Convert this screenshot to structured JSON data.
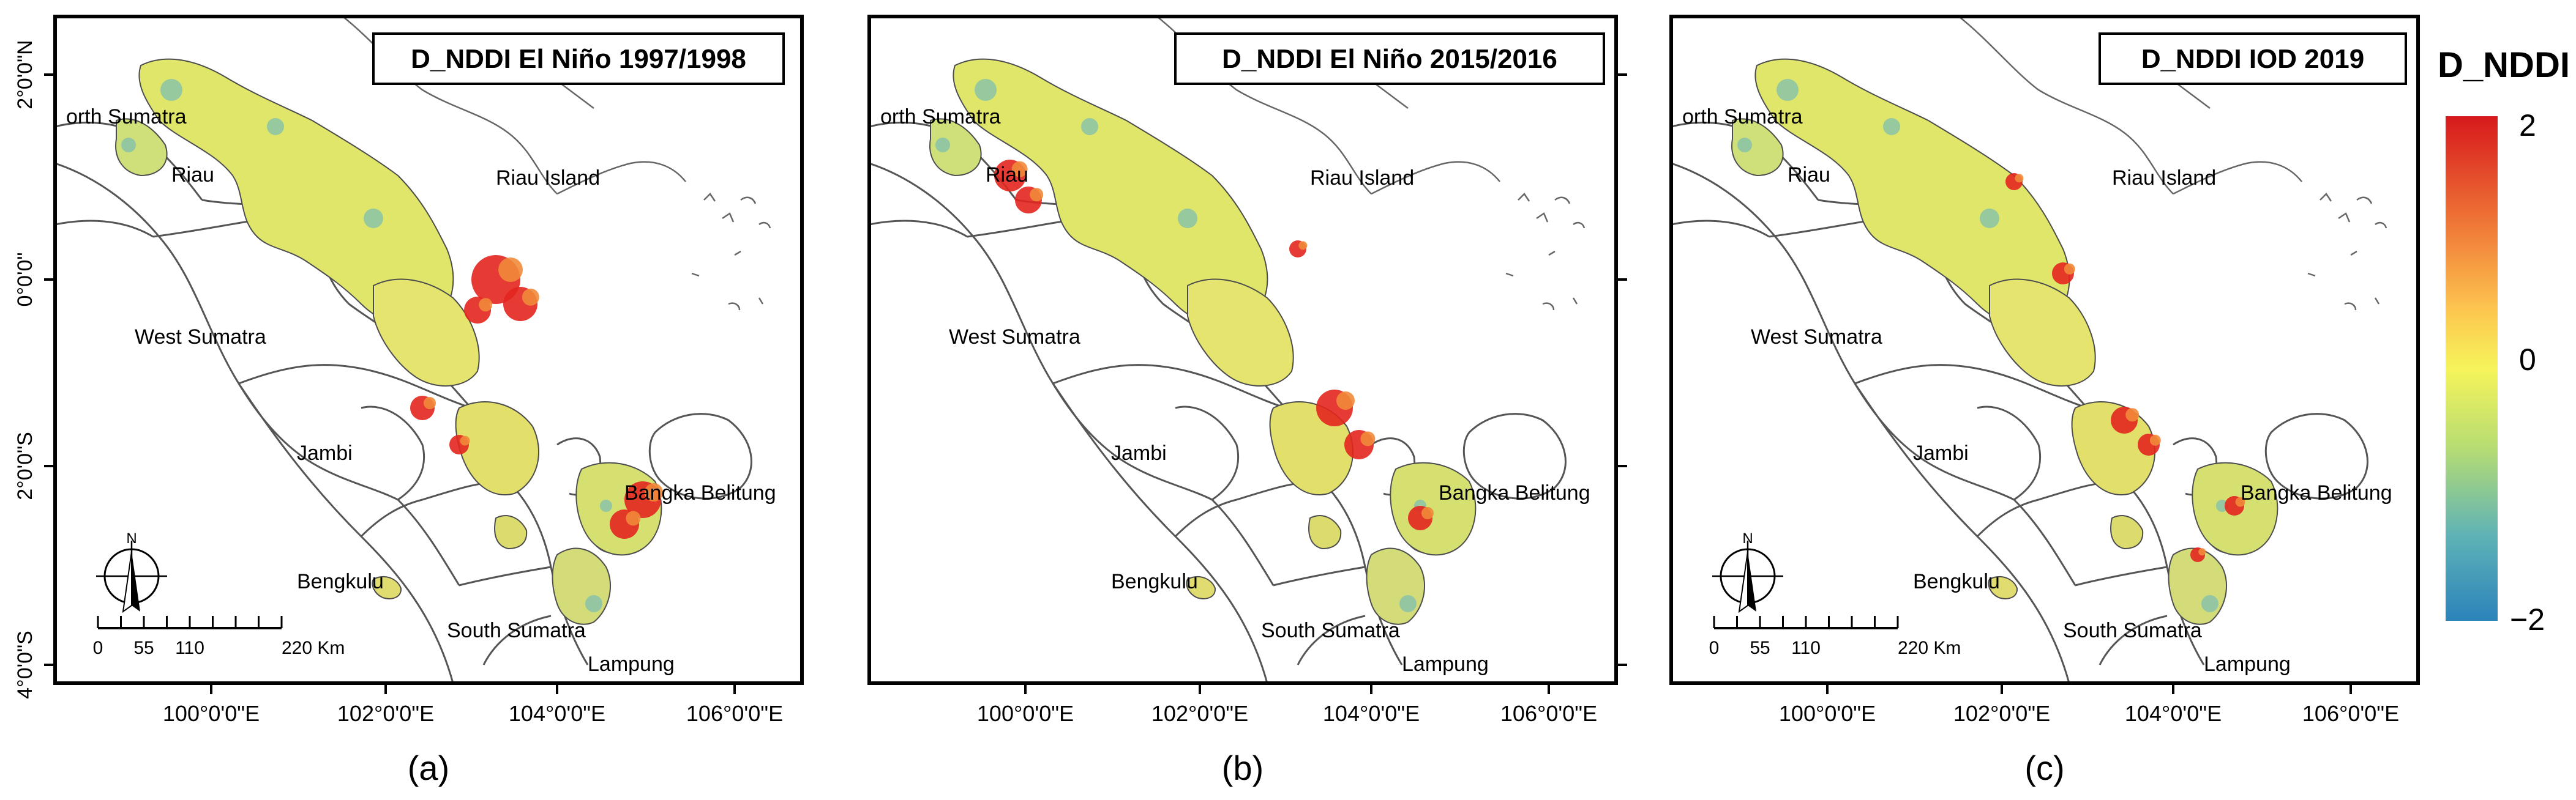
{
  "maps": [
    {
      "id": "a",
      "title": "D_NDDI El Niño 1997/1998",
      "caption": "(a)",
      "lon_ticks": [
        "100°0'0\"E",
        "102°0'0\"E",
        "104°0'0\"E",
        "106°0'0\"E"
      ],
      "lat_ticks": [
        "2°0'0\"N",
        "0°0'0\"",
        "2°0'0\"S",
        "4°0'0\"S"
      ],
      "regions": [
        "orth Sumatra",
        "Riau",
        "Riau Island",
        "West Sumatra",
        "Jambi",
        "Bangka Belitung",
        "Bengkulu",
        "South Sumatra",
        "Lampung"
      ],
      "north_arrow": "N",
      "scalebar_labels": [
        "0",
        "55",
        "110",
        "220 Km"
      ]
    },
    {
      "id": "b",
      "title": "D_NDDI El Niño 2015/2016",
      "caption": "(b)",
      "lon_ticks": [
        "100°0'0\"E",
        "102°0'0\"E",
        "104°0'0\"E",
        "106°0'0\"E"
      ],
      "regions": [
        "orth Sumatra",
        "Riau",
        "Riau Island",
        "West Sumatra",
        "Jambi",
        "Bangka Belitung",
        "Bengkulu",
        "South Sumatra",
        "Lampung"
      ]
    },
    {
      "id": "c",
      "title": "D_NDDI IOD 2019",
      "caption": "(c)",
      "lon_ticks": [
        "100°0'0\"E",
        "102°0'0\"E",
        "104°0'0\"E",
        "106°0'0\"E"
      ],
      "regions": [
        "orth Sumatra",
        "Riau",
        "Riau Island",
        "West Sumatra",
        "Jambi",
        "Bangka Belitung",
        "Bengkulu",
        "South Sumatra",
        "Lampung"
      ],
      "north_arrow": "N",
      "scalebar_labels": [
        "0",
        "55",
        "110",
        "220 Km"
      ]
    }
  ],
  "legend": {
    "title": "D_NDDI",
    "max_label": "2",
    "mid_label": "0",
    "min_label": "−2",
    "colors": [
      "#d7191c",
      "#f07a38",
      "#fdc44f",
      "#f6f45a",
      "#b5dc73",
      "#5fb3b6",
      "#2b83ba"
    ]
  },
  "colors": {
    "land_fill": "#ffffff",
    "outline": "#4a4a4a",
    "coast": "#555555",
    "frame": "#000000"
  }
}
